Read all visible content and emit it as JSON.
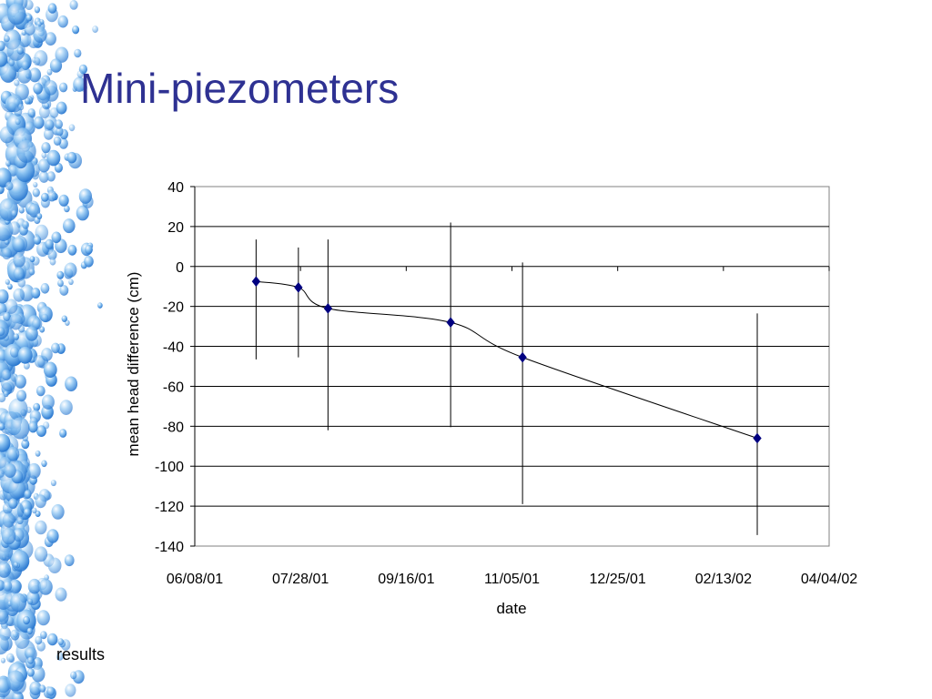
{
  "slide": {
    "title": "Mini-piezometers",
    "footer": "results"
  },
  "colors": {
    "title": "#2e3192",
    "marker": "#000080",
    "line": "#000000",
    "bubbles": "#2a78d0"
  },
  "chart_data": {
    "type": "scatter",
    "title": "",
    "xlabel": "date",
    "ylabel": "mean head difference (cm)",
    "ylim": [
      -140,
      40
    ],
    "y_ticks": [
      40,
      20,
      0,
      -20,
      -40,
      -60,
      -80,
      -100,
      -120,
      -140
    ],
    "xlim": [
      "2001-06-08",
      "2002-04-04"
    ],
    "x_ticks": [
      "06/08/01",
      "07/28/01",
      "09/16/01",
      "11/05/01",
      "12/25/01",
      "02/13/02",
      "04/04/02"
    ],
    "grid": "horizontal",
    "line": "smoothed",
    "series": [
      {
        "marker": "diamond",
        "points": [
          {
            "x": "2001-07-07",
            "y": -7.5,
            "err_low": -46.5,
            "err_high": 13.5
          },
          {
            "x": "2001-07-27",
            "y": -10.5,
            "err_low": -45.5,
            "err_high": 9.5
          },
          {
            "x": "2001-08-10",
            "y": -21,
            "err_low": -82,
            "err_high": 13.5
          },
          {
            "x": "2001-10-07",
            "y": -28,
            "err_low": -80.5,
            "err_high": 22
          },
          {
            "x": "2001-11-10",
            "y": -45.5,
            "err_low": -119,
            "err_high": 2
          },
          {
            "x": "2002-03-01",
            "y": -86,
            "err_low": -134.5,
            "err_high": -23.5
          }
        ]
      }
    ]
  }
}
